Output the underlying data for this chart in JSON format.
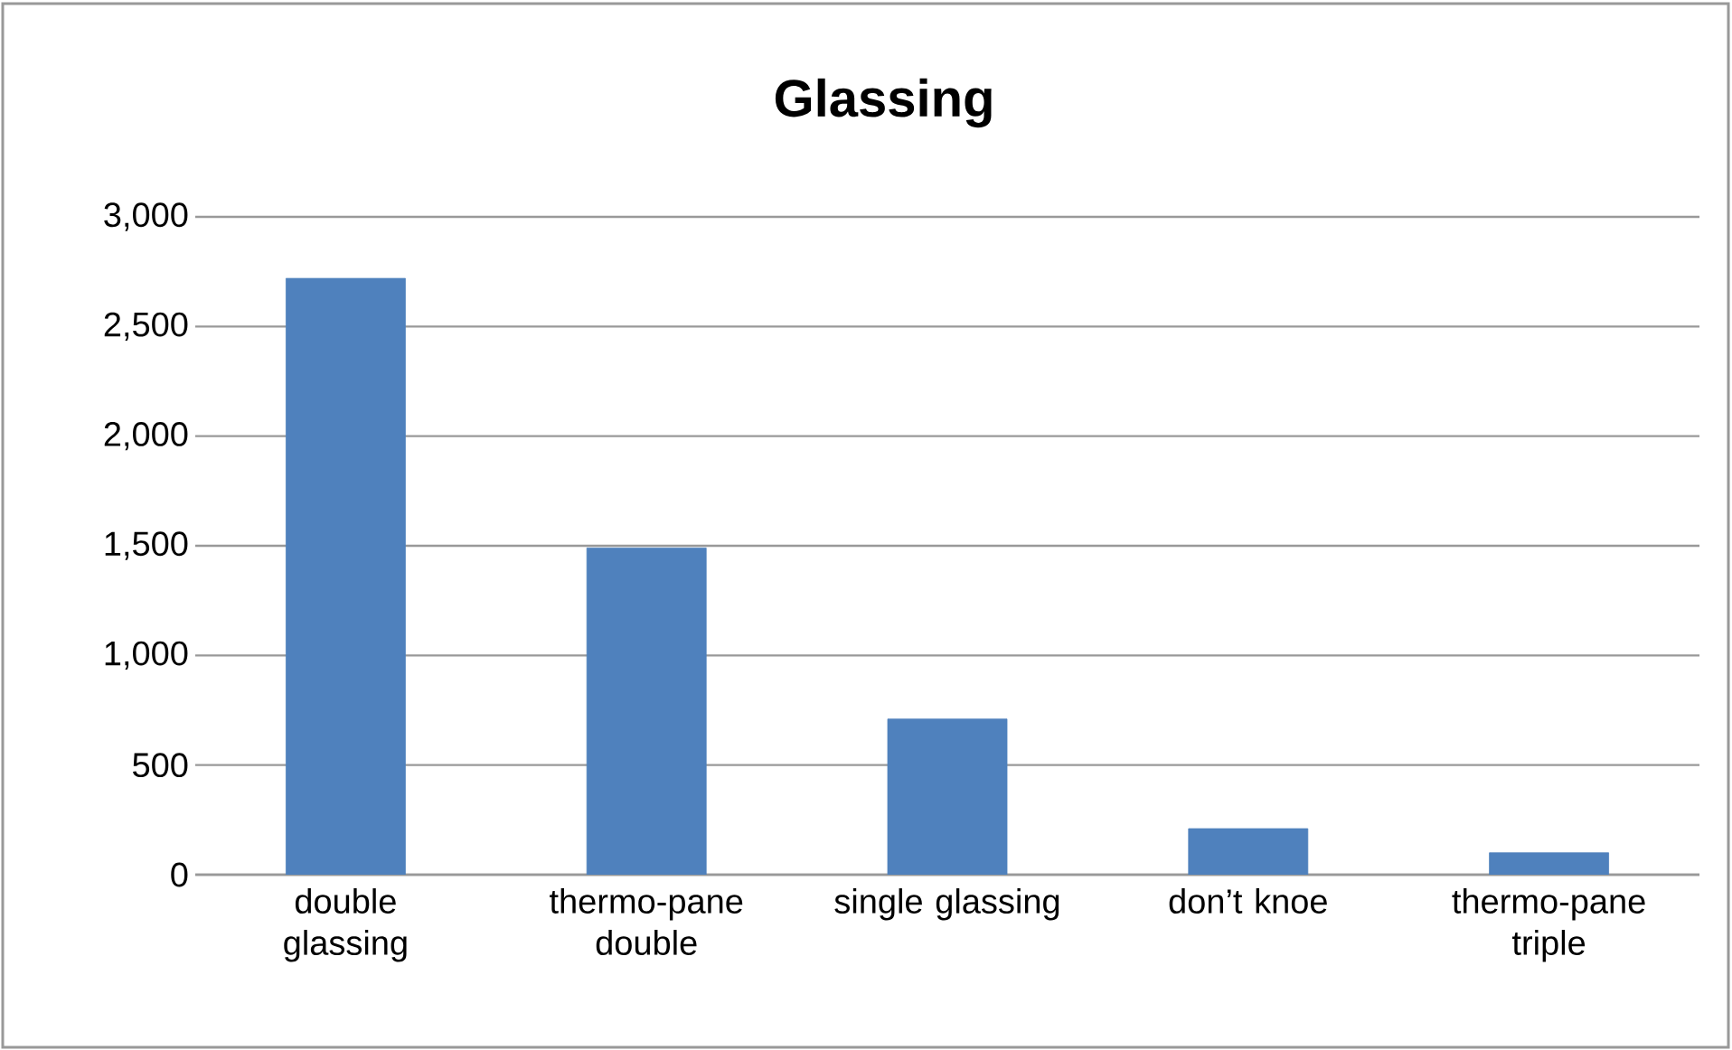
{
  "chart_data": {
    "type": "bar",
    "title": "Glassing",
    "categories": [
      "double glassing",
      "thermo-pane double",
      "single glassing",
      "don’t knoe",
      "thermo-pane triple"
    ],
    "values": [
      2720,
      1490,
      710,
      210,
      100
    ],
    "color": "#4f81bd",
    "ylim": [
      0,
      3000
    ],
    "yticks": [
      0,
      500,
      {
        "value": 1000,
        "label": "1,000"
      },
      {
        "value": 1500,
        "label": "1,500"
      },
      {
        "value": 2000,
        "label": "2,000"
      },
      {
        "value": 2500,
        "label": "2,500"
      },
      {
        "value": 3000,
        "label": "3,000"
      }
    ],
    "grid": "y"
  }
}
